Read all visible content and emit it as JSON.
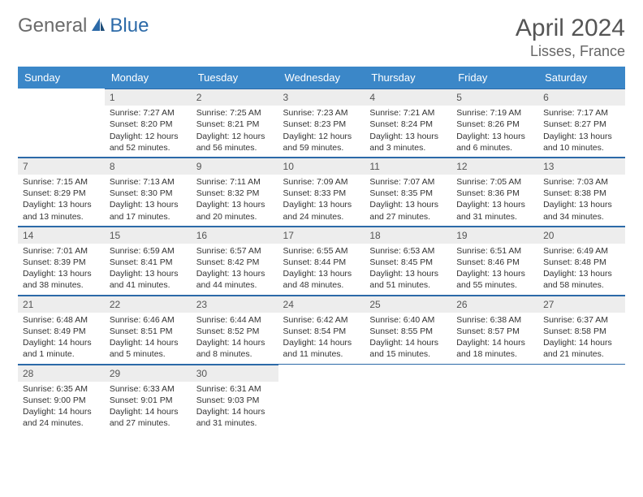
{
  "logo": {
    "part1": "General",
    "part2": "Blue"
  },
  "title": "April 2024",
  "location": "Lisses, France",
  "colors": {
    "header_bg": "#3b87c8",
    "header_text": "#ffffff",
    "daynum_bg": "#ededed",
    "rule": "#2c6aa8",
    "logo_gray": "#6b6b6b",
    "logo_blue": "#2c6aa8"
  },
  "typography": {
    "title_fontsize": 30,
    "location_fontsize": 18,
    "header_fontsize": 13,
    "cell_fontsize": 10.5
  },
  "weekdays": [
    "Sunday",
    "Monday",
    "Tuesday",
    "Wednesday",
    "Thursday",
    "Friday",
    "Saturday"
  ],
  "weeks": [
    [
      null,
      {
        "n": "1",
        "sr": "Sunrise: 7:27 AM",
        "ss": "Sunset: 8:20 PM",
        "dl": "Daylight: 12 hours and 52 minutes."
      },
      {
        "n": "2",
        "sr": "Sunrise: 7:25 AM",
        "ss": "Sunset: 8:21 PM",
        "dl": "Daylight: 12 hours and 56 minutes."
      },
      {
        "n": "3",
        "sr": "Sunrise: 7:23 AM",
        "ss": "Sunset: 8:23 PM",
        "dl": "Daylight: 12 hours and 59 minutes."
      },
      {
        "n": "4",
        "sr": "Sunrise: 7:21 AM",
        "ss": "Sunset: 8:24 PM",
        "dl": "Daylight: 13 hours and 3 minutes."
      },
      {
        "n": "5",
        "sr": "Sunrise: 7:19 AM",
        "ss": "Sunset: 8:26 PM",
        "dl": "Daylight: 13 hours and 6 minutes."
      },
      {
        "n": "6",
        "sr": "Sunrise: 7:17 AM",
        "ss": "Sunset: 8:27 PM",
        "dl": "Daylight: 13 hours and 10 minutes."
      }
    ],
    [
      {
        "n": "7",
        "sr": "Sunrise: 7:15 AM",
        "ss": "Sunset: 8:29 PM",
        "dl": "Daylight: 13 hours and 13 minutes."
      },
      {
        "n": "8",
        "sr": "Sunrise: 7:13 AM",
        "ss": "Sunset: 8:30 PM",
        "dl": "Daylight: 13 hours and 17 minutes."
      },
      {
        "n": "9",
        "sr": "Sunrise: 7:11 AM",
        "ss": "Sunset: 8:32 PM",
        "dl": "Daylight: 13 hours and 20 minutes."
      },
      {
        "n": "10",
        "sr": "Sunrise: 7:09 AM",
        "ss": "Sunset: 8:33 PM",
        "dl": "Daylight: 13 hours and 24 minutes."
      },
      {
        "n": "11",
        "sr": "Sunrise: 7:07 AM",
        "ss": "Sunset: 8:35 PM",
        "dl": "Daylight: 13 hours and 27 minutes."
      },
      {
        "n": "12",
        "sr": "Sunrise: 7:05 AM",
        "ss": "Sunset: 8:36 PM",
        "dl": "Daylight: 13 hours and 31 minutes."
      },
      {
        "n": "13",
        "sr": "Sunrise: 7:03 AM",
        "ss": "Sunset: 8:38 PM",
        "dl": "Daylight: 13 hours and 34 minutes."
      }
    ],
    [
      {
        "n": "14",
        "sr": "Sunrise: 7:01 AM",
        "ss": "Sunset: 8:39 PM",
        "dl": "Daylight: 13 hours and 38 minutes."
      },
      {
        "n": "15",
        "sr": "Sunrise: 6:59 AM",
        "ss": "Sunset: 8:41 PM",
        "dl": "Daylight: 13 hours and 41 minutes."
      },
      {
        "n": "16",
        "sr": "Sunrise: 6:57 AM",
        "ss": "Sunset: 8:42 PM",
        "dl": "Daylight: 13 hours and 44 minutes."
      },
      {
        "n": "17",
        "sr": "Sunrise: 6:55 AM",
        "ss": "Sunset: 8:44 PM",
        "dl": "Daylight: 13 hours and 48 minutes."
      },
      {
        "n": "18",
        "sr": "Sunrise: 6:53 AM",
        "ss": "Sunset: 8:45 PM",
        "dl": "Daylight: 13 hours and 51 minutes."
      },
      {
        "n": "19",
        "sr": "Sunrise: 6:51 AM",
        "ss": "Sunset: 8:46 PM",
        "dl": "Daylight: 13 hours and 55 minutes."
      },
      {
        "n": "20",
        "sr": "Sunrise: 6:49 AM",
        "ss": "Sunset: 8:48 PM",
        "dl": "Daylight: 13 hours and 58 minutes."
      }
    ],
    [
      {
        "n": "21",
        "sr": "Sunrise: 6:48 AM",
        "ss": "Sunset: 8:49 PM",
        "dl": "Daylight: 14 hours and 1 minute."
      },
      {
        "n": "22",
        "sr": "Sunrise: 6:46 AM",
        "ss": "Sunset: 8:51 PM",
        "dl": "Daylight: 14 hours and 5 minutes."
      },
      {
        "n": "23",
        "sr": "Sunrise: 6:44 AM",
        "ss": "Sunset: 8:52 PM",
        "dl": "Daylight: 14 hours and 8 minutes."
      },
      {
        "n": "24",
        "sr": "Sunrise: 6:42 AM",
        "ss": "Sunset: 8:54 PM",
        "dl": "Daylight: 14 hours and 11 minutes."
      },
      {
        "n": "25",
        "sr": "Sunrise: 6:40 AM",
        "ss": "Sunset: 8:55 PM",
        "dl": "Daylight: 14 hours and 15 minutes."
      },
      {
        "n": "26",
        "sr": "Sunrise: 6:38 AM",
        "ss": "Sunset: 8:57 PM",
        "dl": "Daylight: 14 hours and 18 minutes."
      },
      {
        "n": "27",
        "sr": "Sunrise: 6:37 AM",
        "ss": "Sunset: 8:58 PM",
        "dl": "Daylight: 14 hours and 21 minutes."
      }
    ],
    [
      {
        "n": "28",
        "sr": "Sunrise: 6:35 AM",
        "ss": "Sunset: 9:00 PM",
        "dl": "Daylight: 14 hours and 24 minutes."
      },
      {
        "n": "29",
        "sr": "Sunrise: 6:33 AM",
        "ss": "Sunset: 9:01 PM",
        "dl": "Daylight: 14 hours and 27 minutes."
      },
      {
        "n": "30",
        "sr": "Sunrise: 6:31 AM",
        "ss": "Sunset: 9:03 PM",
        "dl": "Daylight: 14 hours and 31 minutes."
      },
      null,
      null,
      null,
      null
    ]
  ]
}
